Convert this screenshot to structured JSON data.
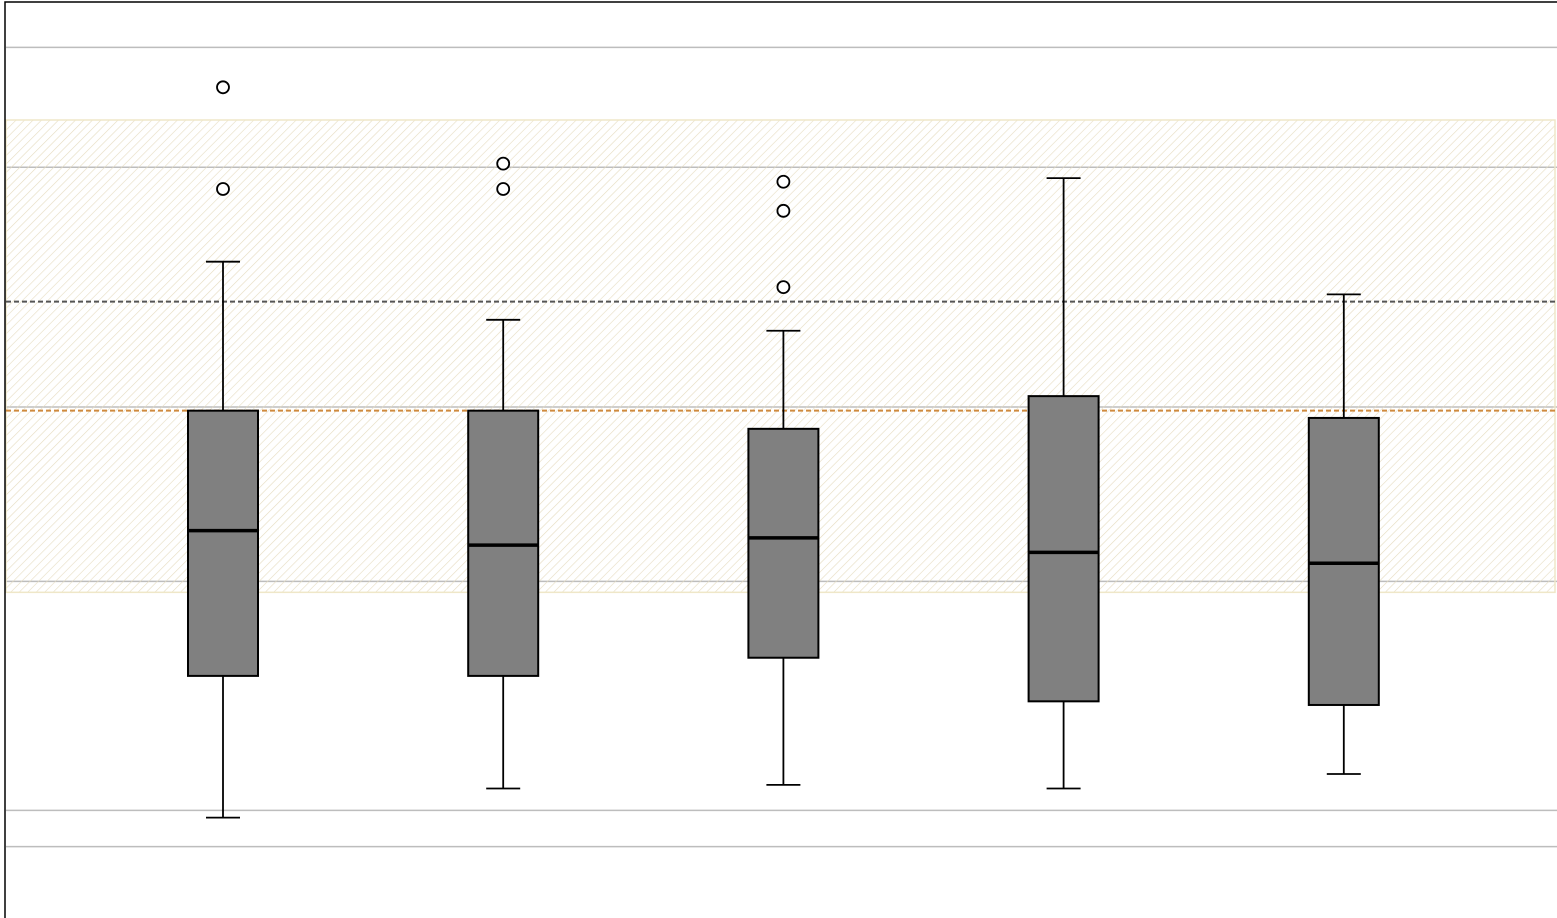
{
  "chart_data": {
    "type": "box",
    "title": "",
    "xlabel": "",
    "ylabel": "",
    "gridlines": [
      0,
      10,
      73,
      121,
      187,
      220
    ],
    "ylim": [
      -10,
      230
    ],
    "reference_band": {
      "from": 70,
      "to": 200
    },
    "reference_lines": [
      {
        "value": 150,
        "style": "dotted-dark"
      },
      {
        "value": 120,
        "style": "dotted-orange"
      }
    ],
    "boxes": [
      {
        "min": 8,
        "q1": 47,
        "median": 87,
        "q3": 120,
        "max": 161,
        "outliers": [
          181,
          209
        ]
      },
      {
        "min": 16,
        "q1": 47,
        "median": 83,
        "q3": 120,
        "max": 145,
        "outliers": [
          181,
          188
        ]
      },
      {
        "min": 17,
        "q1": 52,
        "median": 85,
        "q3": 115,
        "max": 142,
        "outliers": [
          154,
          175,
          183
        ]
      },
      {
        "min": 16,
        "q1": 40,
        "median": 81,
        "q3": 124,
        "max": 184,
        "outliers": []
      },
      {
        "min": 20,
        "q1": 39,
        "median": 78,
        "q3": 118,
        "max": 152,
        "outliers": []
      }
    ],
    "colors": {
      "box_fill": "#808080",
      "grid": "#bdbdbd",
      "band_stripe": "#e6dcc0",
      "band_edge": "#efe7c8",
      "dark_ref_line": "#555555",
      "orange_ref_line": "#cf8a3e"
    },
    "grid": true,
    "legend": "none"
  }
}
